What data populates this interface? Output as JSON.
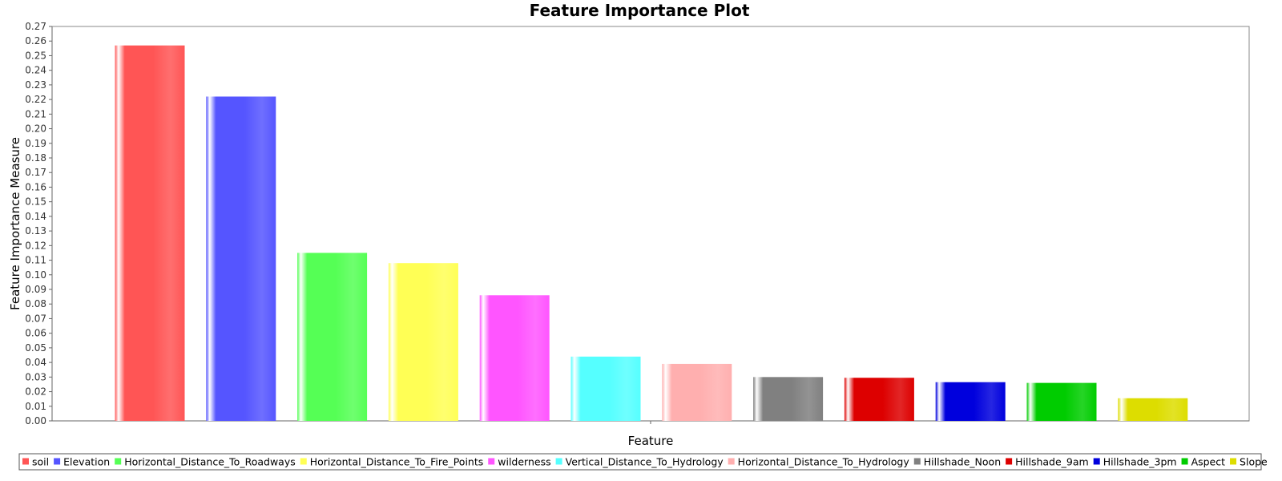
{
  "chart_data": {
    "type": "bar",
    "title": "Feature Importance Plot",
    "xlabel": "Feature",
    "ylabel": "Feature Importance Measure",
    "ylim": [
      0,
      0.27
    ],
    "ytick_step": 0.01,
    "grid": false,
    "legend_position": "bottom",
    "series": [
      {
        "name": "soil",
        "value": 0.257,
        "color": "#ff5555"
      },
      {
        "name": "Elevation",
        "value": 0.222,
        "color": "#5555ff"
      },
      {
        "name": "Horizontal_Distance_To_Roadways",
        "value": 0.115,
        "color": "#55ff55"
      },
      {
        "name": "Horizontal_Distance_To_Fire_Points",
        "value": 0.108,
        "color": "#ffff55"
      },
      {
        "name": "wilderness",
        "value": 0.086,
        "color": "#ff55ff"
      },
      {
        "name": "Vertical_Distance_To_Hydrology",
        "value": 0.044,
        "color": "#55ffff"
      },
      {
        "name": "Horizontal_Distance_To_Hydrology",
        "value": 0.039,
        "color": "#ffafaf"
      },
      {
        "name": "Hillshade_Noon",
        "value": 0.03,
        "color": "#808080"
      },
      {
        "name": "Hillshade_9am",
        "value": 0.0295,
        "color": "#dd0000"
      },
      {
        "name": "Hillshade_3pm",
        "value": 0.0265,
        "color": "#0000dd"
      },
      {
        "name": "Aspect",
        "value": 0.026,
        "color": "#00cc00"
      },
      {
        "name": "Slope",
        "value": 0.0155,
        "color": "#dddd00"
      }
    ]
  }
}
